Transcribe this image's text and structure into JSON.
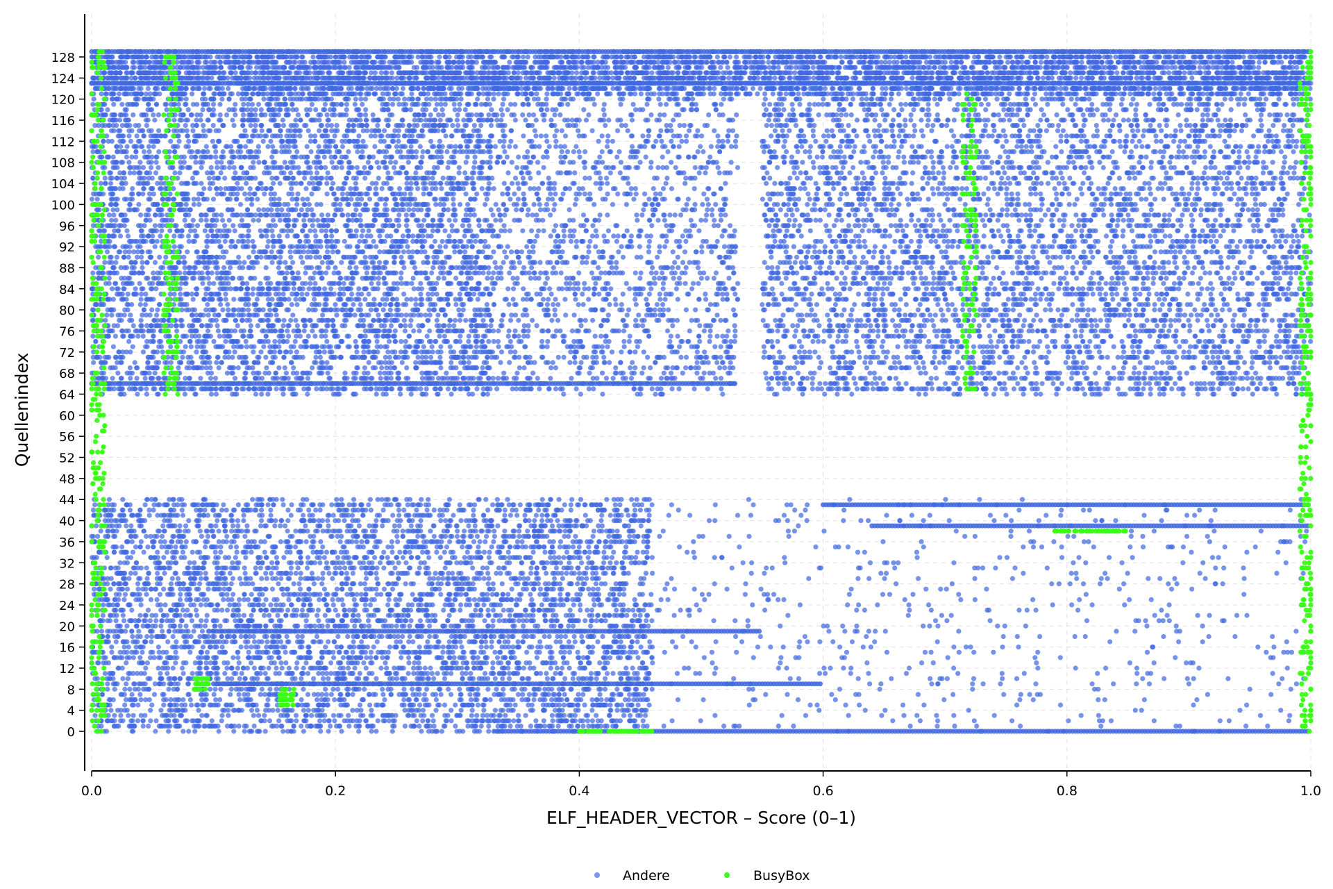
{
  "chart_data": {
    "type": "scatter",
    "title": "",
    "xlabel": "ELF_HEADER_VECTOR – Score (0–1)",
    "ylabel": "Quellenindex",
    "xlim": [
      0.0,
      1.0
    ],
    "ylim": [
      -7,
      137
    ],
    "grid": true,
    "legend_position": "bottom-center",
    "x_ticks": [
      "0.0",
      "0.2",
      "0.4",
      "0.6",
      "0.8",
      "1.0"
    ],
    "y_ticks": [
      "0",
      "4",
      "8",
      "12",
      "16",
      "20",
      "24",
      "28",
      "32",
      "36",
      "40",
      "44",
      "48",
      "52",
      "56",
      "60",
      "64",
      "68",
      "72",
      "76",
      "80",
      "84",
      "88",
      "92",
      "96",
      "100",
      "104",
      "108",
      "112",
      "116",
      "120",
      "124",
      "128"
    ],
    "y_populated_ranges": [
      [
        0,
        44
      ],
      [
        64,
        129
      ]
    ],
    "series": [
      {
        "name": "Andere",
        "color": "#4169e1",
        "approx_density_bands": [
          {
            "y": [
              64,
              121
            ],
            "x": [
              0.0,
              0.33
            ],
            "density": "high"
          },
          {
            "y": [
              64,
              121
            ],
            "x": [
              0.33,
              0.53
            ],
            "density": "medium"
          },
          {
            "y": [
              64,
              121
            ],
            "x": [
              0.55,
              1.0
            ],
            "density": "high"
          },
          {
            "y": [
              121,
              129
            ],
            "x": [
              0.0,
              1.0
            ],
            "density": "high"
          },
          {
            "y": [
              0,
              44
            ],
            "x": [
              0.0,
              0.46
            ],
            "density": "high"
          },
          {
            "y": [
              0,
              44
            ],
            "x": [
              0.46,
              1.0
            ],
            "density": "low"
          }
        ],
        "horizontal_streaks": [
          {
            "y": 0,
            "x": [
              0.33,
              1.0
            ]
          },
          {
            "y": 9,
            "x": [
              0.1,
              0.6
            ]
          },
          {
            "y": 19,
            "x": [
              0.1,
              0.55
            ]
          },
          {
            "y": 39,
            "x": [
              0.64,
              1.0
            ]
          },
          {
            "y": 43,
            "x": [
              0.6,
              1.0
            ]
          },
          {
            "y": 66,
            "x": [
              0.0,
              0.53
            ]
          },
          {
            "y": 123,
            "x": [
              0.0,
              1.0
            ]
          },
          {
            "y": 129,
            "x": [
              0.0,
              1.0
            ]
          }
        ]
      },
      {
        "name": "BusyBox",
        "color": "#39ff14",
        "clusters": [
          {
            "x": 0.005,
            "y": [
              0,
              129
            ]
          },
          {
            "x": 0.065,
            "y": [
              64,
              129
            ]
          },
          {
            "x": 0.09,
            "y": [
              8,
              10
            ]
          },
          {
            "x": 0.16,
            "y": [
              5,
              8
            ]
          },
          {
            "x": 0.43,
            "y": [
              0,
              0
            ]
          },
          {
            "x": 0.72,
            "y": [
              64,
              121
            ]
          },
          {
            "x": 0.82,
            "y": [
              38,
              38
            ]
          },
          {
            "x": 0.997,
            "y": [
              0,
              129
            ]
          }
        ]
      }
    ]
  }
}
